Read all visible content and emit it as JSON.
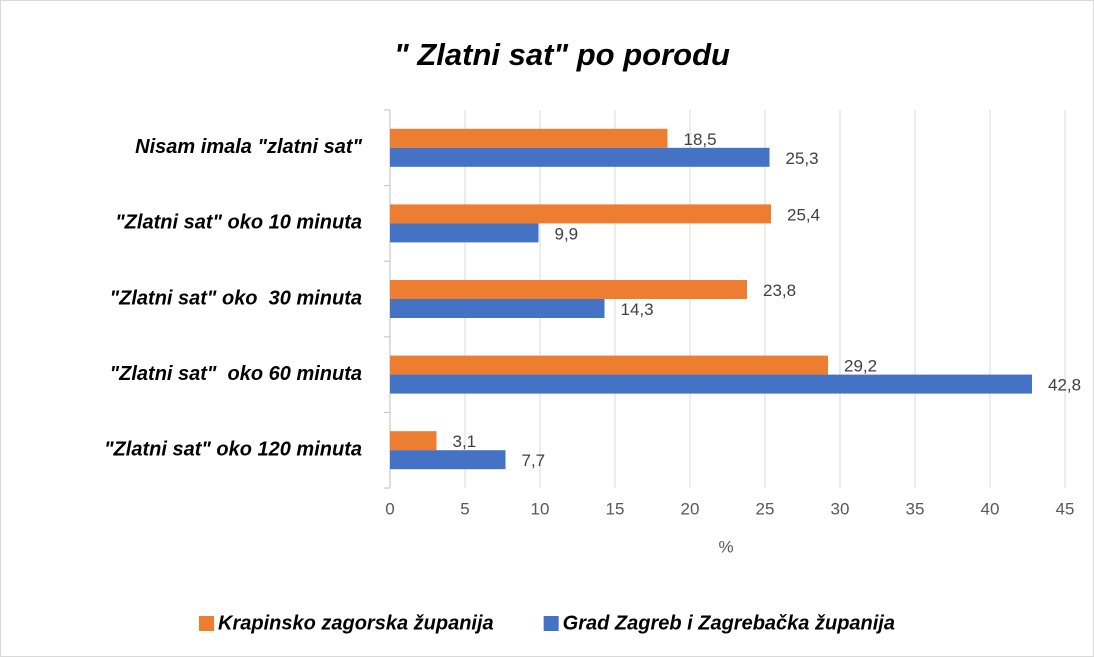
{
  "chart_data": {
    "type": "hbar",
    "title": "\" Zlatni sat\" po porodu",
    "categories": [
      "Nisam imala \"zlatni sat\"",
      "\"Zlatni sat\" oko 10 minuta",
      "\"Zlatni sat\" oko  30 minuta",
      "\"Zlatni sat\"  oko 60 minuta",
      "\"Zlatni sat\" oko 120 minuta"
    ],
    "series": [
      {
        "name": "Krapinsko zagorska županija",
        "color": "#ed7d31",
        "values": [
          18.5,
          25.4,
          23.8,
          29.2,
          3.1
        ],
        "value_labels": [
          "18,5",
          "25,4",
          "23,8",
          "29,2",
          "3,1"
        ]
      },
      {
        "name": "Grad Zagreb i Zagrebačka županija",
        "color": "#4472c4",
        "values": [
          25.3,
          9.9,
          14.3,
          42.8,
          7.7
        ],
        "value_labels": [
          "25,3",
          "9,9",
          "14,3",
          "42,8",
          "7,7"
        ]
      }
    ],
    "x_label": "%",
    "xlim": [
      0,
      45
    ],
    "xticks": [
      0,
      5,
      10,
      15,
      20,
      25,
      30,
      35,
      40,
      45
    ],
    "grid": true,
    "legend": "bottom"
  }
}
